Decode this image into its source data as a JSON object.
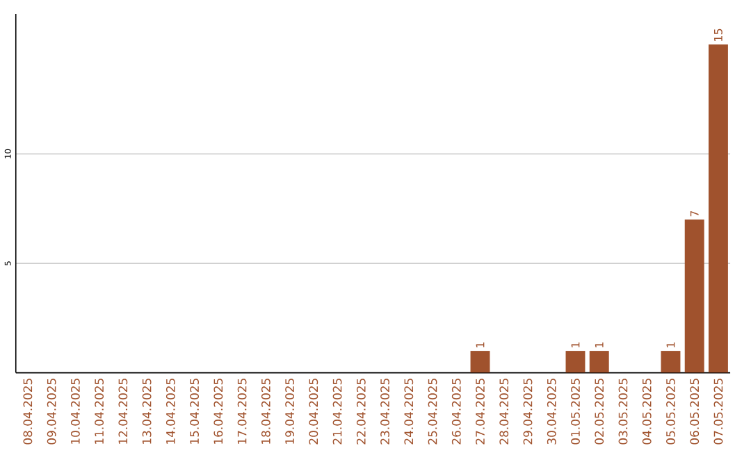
{
  "chart_data": {
    "type": "bar",
    "categories": [
      "08.04.2025",
      "09.04.2025",
      "10.04.2025",
      "11.04.2025",
      "12.04.2025",
      "13.04.2025",
      "14.04.2025",
      "15.04.2025",
      "16.04.2025",
      "17.04.2025",
      "18.04.2025",
      "19.04.2025",
      "20.04.2025",
      "21.04.2025",
      "22.04.2025",
      "23.04.2025",
      "24.04.2025",
      "25.04.2025",
      "26.04.2025",
      "27.04.2025",
      "28.04.2025",
      "29.04.2025",
      "30.04.2025",
      "01.05.2025",
      "02.05.2025",
      "03.05.2025",
      "04.05.2025",
      "05.05.2025",
      "06.05.2025",
      "07.05.2025"
    ],
    "values": [
      0,
      0,
      0,
      0,
      0,
      0,
      0,
      0,
      0,
      0,
      0,
      0,
      0,
      0,
      0,
      0,
      0,
      0,
      0,
      1,
      0,
      0,
      0,
      1,
      1,
      0,
      0,
      1,
      7,
      15
    ],
    "value_labels": [
      null,
      null,
      null,
      null,
      null,
      null,
      null,
      null,
      null,
      null,
      null,
      null,
      null,
      null,
      null,
      null,
      null,
      null,
      null,
      "1",
      null,
      null,
      null,
      "1",
      "1",
      null,
      null,
      "1",
      "7",
      "15"
    ],
    "color": "#a0522d",
    "ylim": [
      0,
      16.4
    ],
    "yticks": [
      5,
      10
    ],
    "grid": "y"
  }
}
